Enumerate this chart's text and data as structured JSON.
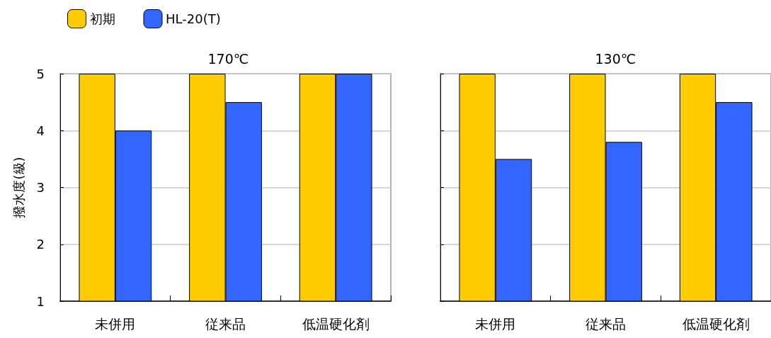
{
  "chart_data": [
    {
      "type": "bar",
      "title": "170℃",
      "ylabel": "撥水度(級)",
      "categories": [
        "未併用",
        "従来品",
        "低温硬化剤"
      ],
      "series": [
        {
          "name": "初期",
          "color": "#ffcc00",
          "values": [
            5,
            5,
            5
          ]
        },
        {
          "name": "HL-20(T)",
          "color": "#3366ff",
          "values": [
            4,
            4.5,
            5
          ]
        }
      ],
      "ylim": [
        1,
        5
      ],
      "yticks": [
        1,
        2,
        3,
        4,
        5
      ],
      "grid": "y",
      "legend": "top left"
    },
    {
      "type": "bar",
      "title": "130℃",
      "categories": [
        "未併用",
        "従来品",
        "低温硬化剤"
      ],
      "series": [
        {
          "color": "#ffcc00",
          "values": [
            5,
            5,
            5
          ]
        },
        {
          "color": "#3366ff",
          "values": [
            3.5,
            3.8,
            4.5
          ]
        }
      ],
      "ylim": [
        1,
        5
      ],
      "yticks": [
        1,
        2,
        3,
        4,
        5
      ],
      "grid": "y",
      "tick_labels": "x"
    }
  ]
}
